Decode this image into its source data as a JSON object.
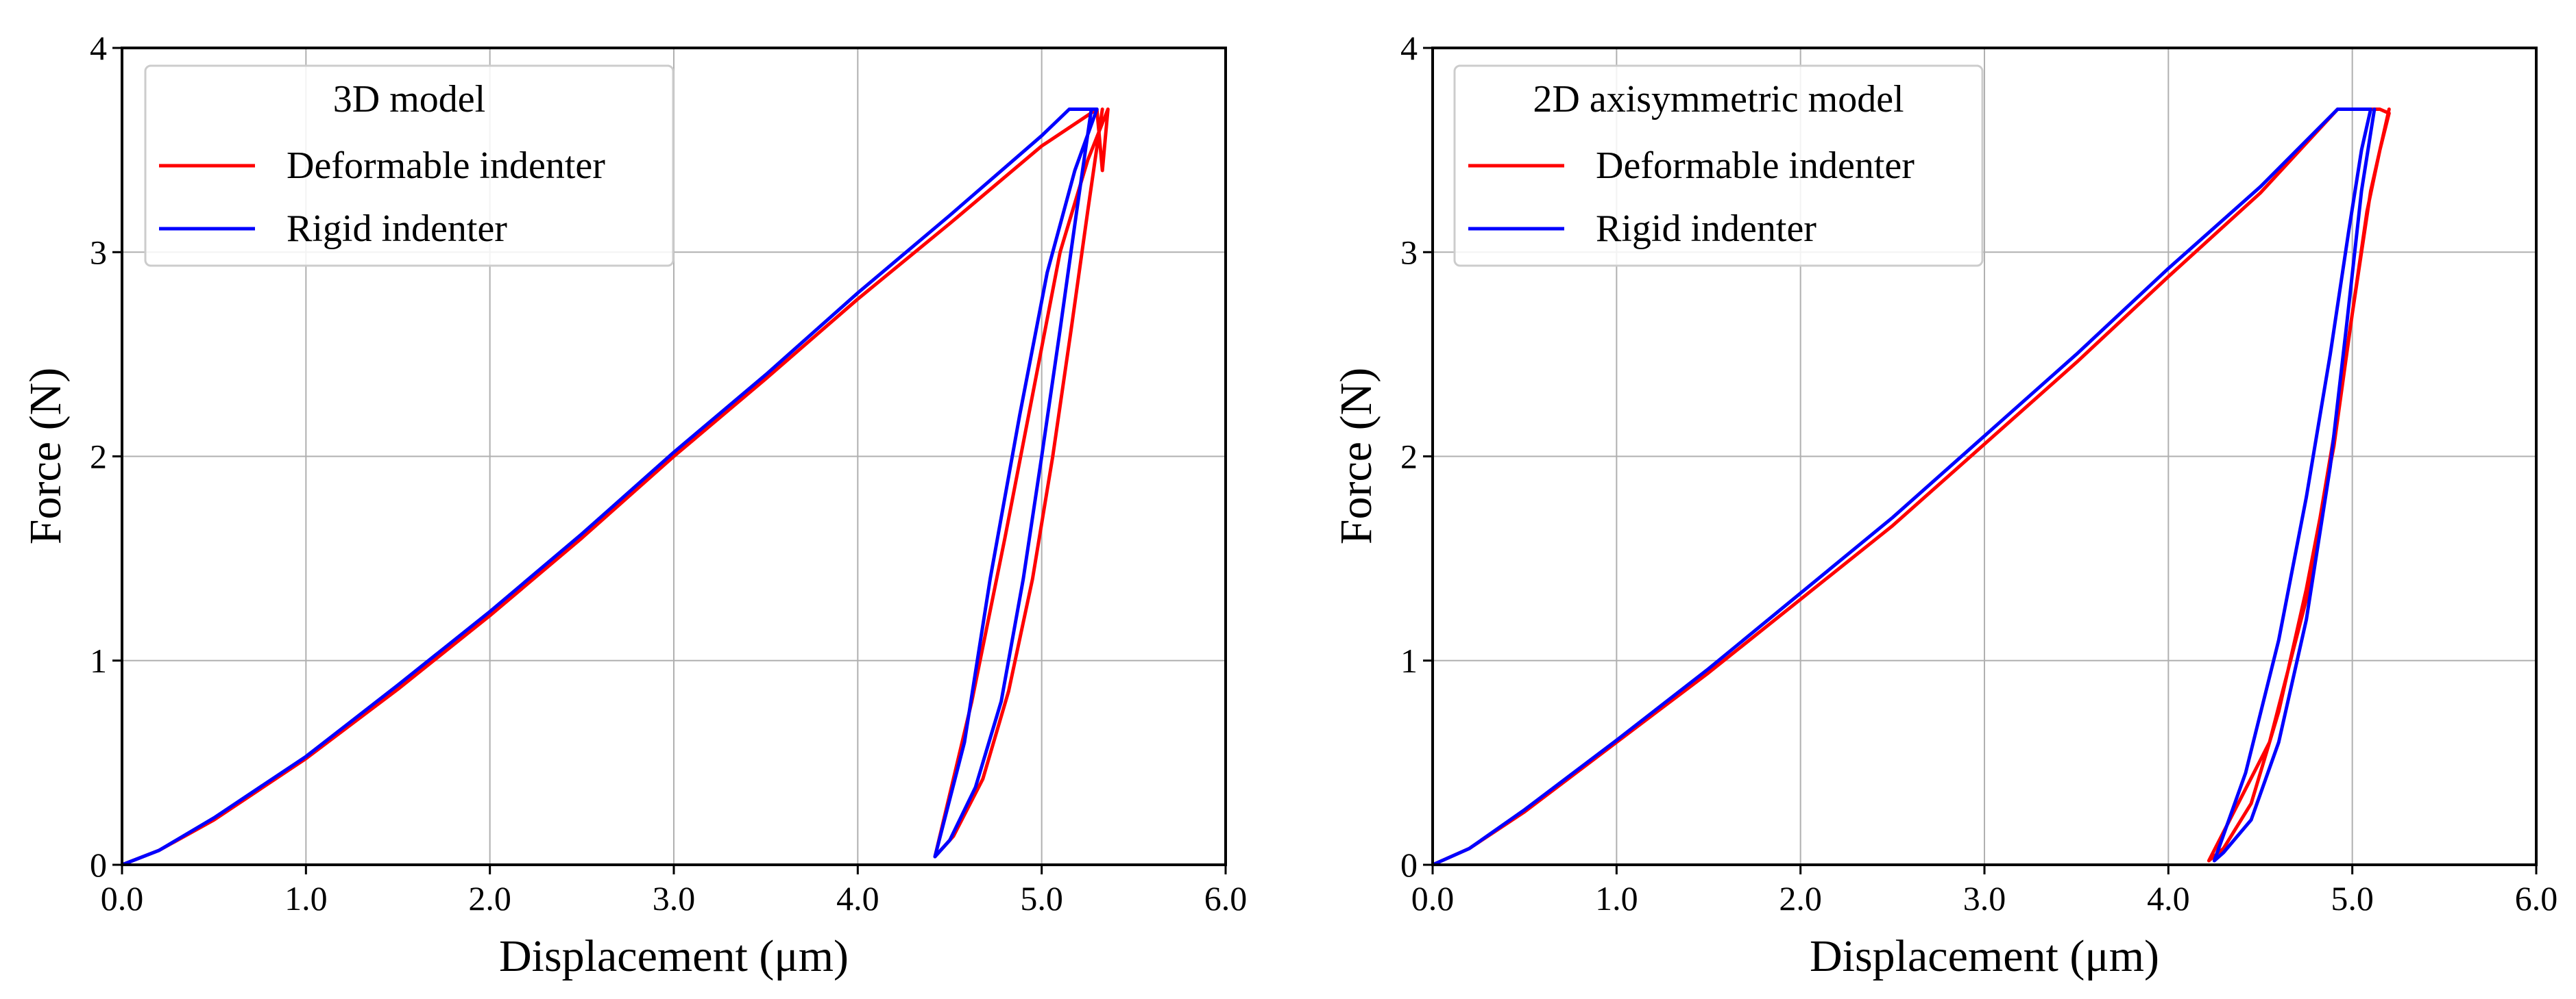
{
  "chart_data": [
    {
      "type": "line",
      "title": "",
      "legend_title": "3D model",
      "legend_position": "upper-left",
      "xlabel": "Displacement (μm)",
      "ylabel": "Force  (N)",
      "xlim": [
        0,
        6
      ],
      "ylim": [
        0,
        4
      ],
      "grid": true,
      "xticks": [
        0,
        1,
        2,
        3,
        4,
        5,
        6
      ],
      "xtick_labels": [
        "0.0",
        "1.0",
        "2.0",
        "3.0",
        "4.0",
        "5.0",
        "6.0"
      ],
      "yticks": [
        0,
        1,
        2,
        3,
        4
      ],
      "ytick_labels": [
        "0",
        "1",
        "2",
        "3",
        "4"
      ],
      "series": [
        {
          "name": "Deformable indenter",
          "color": "#ff0000",
          "points": [
            [
              0.0,
              0.0
            ],
            [
              0.2,
              0.07
            ],
            [
              0.5,
              0.22
            ],
            [
              1.0,
              0.52
            ],
            [
              1.5,
              0.86
            ],
            [
              2.0,
              1.22
            ],
            [
              2.5,
              1.6
            ],
            [
              3.0,
              2.0
            ],
            [
              3.5,
              2.38
            ],
            [
              4.0,
              2.77
            ],
            [
              4.5,
              3.14
            ],
            [
              5.0,
              3.52
            ],
            [
              5.3,
              3.7
            ],
            [
              5.33,
              3.4
            ],
            [
              5.36,
              3.7
            ],
            [
              5.25,
              3.45
            ],
            [
              5.1,
              3.0
            ],
            [
              4.95,
              2.3
            ],
            [
              4.8,
              1.6
            ],
            [
              4.62,
              0.8
            ],
            [
              4.42,
              0.04
            ],
            [
              4.52,
              0.14
            ],
            [
              4.68,
              0.42
            ],
            [
              4.82,
              0.85
            ],
            [
              4.95,
              1.4
            ],
            [
              5.06,
              2.0
            ],
            [
              5.16,
              2.62
            ],
            [
              5.25,
              3.2
            ],
            [
              5.33,
              3.7
            ]
          ]
        },
        {
          "name": "Rigid indenter",
          "color": "#0000ff",
          "points": [
            [
              0.0,
              0.0
            ],
            [
              0.2,
              0.07
            ],
            [
              0.5,
              0.23
            ],
            [
              1.0,
              0.53
            ],
            [
              1.5,
              0.88
            ],
            [
              2.0,
              1.24
            ],
            [
              2.5,
              1.62
            ],
            [
              3.0,
              2.02
            ],
            [
              3.5,
              2.4
            ],
            [
              4.0,
              2.8
            ],
            [
              4.5,
              3.18
            ],
            [
              5.0,
              3.57
            ],
            [
              5.15,
              3.7
            ],
            [
              5.3,
              3.7
            ],
            [
              5.18,
              3.4
            ],
            [
              5.03,
              2.9
            ],
            [
              4.88,
              2.2
            ],
            [
              4.72,
              1.4
            ],
            [
              4.58,
              0.6
            ],
            [
              4.42,
              0.04
            ],
            [
              4.5,
              0.12
            ],
            [
              4.64,
              0.38
            ],
            [
              4.78,
              0.8
            ],
            [
              4.9,
              1.4
            ],
            [
              5.0,
              2.0
            ],
            [
              5.1,
              2.62
            ],
            [
              5.19,
              3.2
            ],
            [
              5.27,
              3.7
            ]
          ]
        }
      ]
    },
    {
      "type": "line",
      "title": "",
      "legend_title": "2D axisymmetric model",
      "legend_position": "upper-left",
      "xlabel": "Displacement (μm)",
      "ylabel": "Force  (N)",
      "xlim": [
        0,
        6
      ],
      "ylim": [
        0,
        4
      ],
      "grid": true,
      "xticks": [
        0,
        1,
        2,
        3,
        4,
        5,
        6
      ],
      "xtick_labels": [
        "0.0",
        "1.0",
        "2.0",
        "3.0",
        "4.0",
        "5.0",
        "6.0"
      ],
      "yticks": [
        0,
        1,
        2,
        3,
        4
      ],
      "ytick_labels": [
        "0",
        "1",
        "2",
        "3",
        "4"
      ],
      "series": [
        {
          "name": "Deformable indenter",
          "color": "#ff0000",
          "points": [
            [
              0.0,
              0.0
            ],
            [
              0.2,
              0.08
            ],
            [
              0.5,
              0.26
            ],
            [
              1.0,
              0.6
            ],
            [
              1.5,
              0.94
            ],
            [
              2.0,
              1.3
            ],
            [
              2.5,
              1.66
            ],
            [
              3.0,
              2.06
            ],
            [
              3.5,
              2.46
            ],
            [
              4.0,
              2.88
            ],
            [
              4.5,
              3.29
            ],
            [
              4.92,
              3.7
            ],
            [
              5.15,
              3.7
            ],
            [
              5.2,
              3.68
            ],
            [
              5.15,
              3.5
            ],
            [
              5.08,
              3.2
            ],
            [
              5.0,
              2.7
            ],
            [
              4.9,
              2.1
            ],
            [
              4.75,
              1.3
            ],
            [
              4.55,
              0.6
            ],
            [
              4.22,
              0.02
            ],
            [
              4.3,
              0.08
            ],
            [
              4.45,
              0.3
            ],
            [
              4.6,
              0.75
            ],
            [
              4.75,
              1.35
            ],
            [
              4.9,
              2.05
            ],
            [
              5.0,
              2.7
            ],
            [
              5.1,
              3.3
            ],
            [
              5.2,
              3.7
            ]
          ]
        },
        {
          "name": "Rigid indenter",
          "color": "#0000ff",
          "points": [
            [
              0.0,
              0.0
            ],
            [
              0.2,
              0.08
            ],
            [
              0.5,
              0.27
            ],
            [
              1.0,
              0.61
            ],
            [
              1.5,
              0.96
            ],
            [
              2.0,
              1.33
            ],
            [
              2.5,
              1.7
            ],
            [
              3.0,
              2.1
            ],
            [
              3.5,
              2.5
            ],
            [
              4.0,
              2.92
            ],
            [
              4.5,
              3.32
            ],
            [
              4.92,
              3.7
            ],
            [
              5.1,
              3.7
            ],
            [
              5.05,
              3.5
            ],
            [
              4.98,
              3.1
            ],
            [
              4.88,
              2.5
            ],
            [
              4.75,
              1.8
            ],
            [
              4.6,
              1.1
            ],
            [
              4.42,
              0.45
            ],
            [
              4.25,
              0.02
            ],
            [
              4.3,
              0.06
            ],
            [
              4.45,
              0.22
            ],
            [
              4.6,
              0.6
            ],
            [
              4.75,
              1.2
            ],
            [
              4.88,
              1.95
            ],
            [
              4.97,
              2.65
            ],
            [
              5.05,
              3.3
            ],
            [
              5.12,
              3.7
            ]
          ]
        }
      ]
    }
  ]
}
